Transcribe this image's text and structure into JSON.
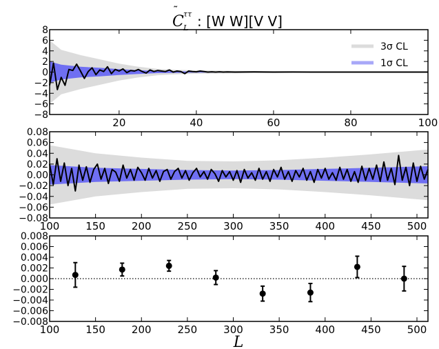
{
  "figure": {
    "title_symbol": "C",
    "title_superscript": "ττ",
    "title_subscript": "L",
    "title_text": ": [W W][V V]",
    "xlabel": "L"
  },
  "colors": {
    "band3": "#dcdcdc",
    "band1": "#6f6ff2",
    "band1_legend": "#a8a8f8",
    "line": "#000000",
    "axis": "#000000"
  },
  "chart_data": [
    {
      "type": "line",
      "panel": "top",
      "xlim": [
        2,
        100
      ],
      "ylim": [
        -8,
        8
      ],
      "xticks": [
        20,
        40,
        60,
        80,
        100
      ],
      "yticks": [
        -8,
        -6,
        -4,
        -2,
        0,
        2,
        4,
        6,
        8
      ],
      "grid": false,
      "legend": {
        "placement": "top-right",
        "entries": [
          {
            "label": "3σ CL",
            "color": "#dcdcdc"
          },
          {
            "label": "1σ CL",
            "color": "#a8a8f8"
          }
        ]
      },
      "band_3sigma": {
        "x": [
          2,
          5,
          10,
          15,
          20,
          25,
          30,
          35,
          40,
          50,
          60,
          70,
          80,
          90,
          100
        ],
        "upper": [
          6.0,
          4.2,
          3.2,
          2.4,
          1.6,
          1.0,
          0.6,
          0.42,
          0.32,
          0.22,
          0.16,
          0.12,
          0.1,
          0.08,
          0.07
        ],
        "lower": [
          -6.0,
          -4.2,
          -3.2,
          -2.4,
          -1.6,
          -1.0,
          -0.6,
          -0.42,
          -0.32,
          -0.22,
          -0.16,
          -0.12,
          -0.1,
          -0.08,
          -0.07
        ]
      },
      "band_1sigma": {
        "x": [
          2,
          5,
          10,
          15,
          20,
          25,
          30,
          35,
          40,
          50,
          60,
          70,
          80,
          90,
          100
        ],
        "upper": [
          2.0,
          1.4,
          1.0,
          0.8,
          0.55,
          0.35,
          0.2,
          0.14,
          0.11,
          0.07,
          0.05,
          0.04,
          0.03,
          0.03,
          0.02
        ],
        "lower": [
          -2.0,
          -1.4,
          -1.0,
          -0.8,
          -0.55,
          -0.35,
          -0.2,
          -0.14,
          -0.11,
          -0.07,
          -0.05,
          -0.04,
          -0.03,
          -0.03,
          -0.02
        ]
      },
      "series": [
        {
          "x": [
            2,
            3,
            4,
            5,
            6,
            7,
            8,
            9,
            10,
            11,
            12,
            13,
            14,
            15,
            16,
            17,
            18,
            19,
            20,
            21,
            22,
            23,
            24,
            25,
            26,
            27,
            28,
            29,
            30,
            31,
            32,
            33,
            34,
            35,
            36,
            37,
            38,
            39,
            40,
            41,
            42,
            43,
            44,
            45,
            46,
            47,
            48,
            50,
            55,
            60,
            65,
            70,
            75,
            80,
            85,
            90,
            95,
            100
          ],
          "y": [
            -2.5,
            1.7,
            -3.3,
            -1.0,
            -2.5,
            0.5,
            0.3,
            1.5,
            0.2,
            -1.2,
            0.1,
            0.8,
            -0.5,
            0.4,
            0.1,
            1.0,
            -0.3,
            0.5,
            0.2,
            0.6,
            -0.1,
            0.3,
            0.2,
            0.5,
            0.1,
            -0.2,
            0.4,
            0.1,
            0.3,
            0.2,
            0.1,
            0.4,
            0.0,
            0.2,
            0.1,
            -0.3,
            0.2,
            0.1,
            0.05,
            0.2,
            0.1,
            0.0,
            0.05,
            0.0,
            0.05,
            0.0,
            0.03,
            0.0,
            0.02,
            0.0,
            0.01,
            0.0,
            0.0,
            0.0,
            0.0,
            0.0,
            0.0,
            0.0
          ]
        }
      ]
    },
    {
      "type": "line",
      "panel": "middle",
      "xlim": [
        100,
        512
      ],
      "ylim": [
        -0.08,
        0.08
      ],
      "xticks": [
        100,
        150,
        200,
        250,
        300,
        350,
        400,
        450,
        500
      ],
      "xticklabels": [
        "100",
        "150",
        "200",
        "250",
        "300",
        "350",
        "400",
        "450",
        "500"
      ],
      "yticks": [
        -0.08,
        -0.06,
        -0.04,
        -0.02,
        0.0,
        0.02,
        0.04,
        0.06,
        0.08
      ],
      "yticklabels": [
        "−0.08",
        "−0.06",
        "−0.04",
        "−0.02",
        "0.00",
        "0.02",
        "0.04",
        "0.06",
        "0.08"
      ],
      "grid": false,
      "band_3sigma": {
        "x": [
          100,
          150,
          200,
          250,
          300,
          350,
          400,
          450,
          512
        ],
        "upper": [
          0.055,
          0.04,
          0.032,
          0.026,
          0.025,
          0.027,
          0.032,
          0.038,
          0.047
        ],
        "lower": [
          -0.055,
          -0.04,
          -0.032,
          -0.026,
          -0.025,
          -0.027,
          -0.032,
          -0.038,
          -0.047
        ]
      },
      "band_1sigma": {
        "x": [
          100,
          150,
          200,
          250,
          300,
          350,
          400,
          450,
          512
        ],
        "upper": [
          0.018,
          0.013,
          0.011,
          0.009,
          0.008,
          0.009,
          0.011,
          0.013,
          0.016
        ],
        "lower": [
          -0.018,
          -0.013,
          -0.011,
          -0.009,
          -0.008,
          -0.009,
          -0.011,
          -0.013,
          -0.016
        ]
      },
      "series": [
        {
          "x": [
            100,
            104,
            108,
            112,
            116,
            120,
            124,
            128,
            132,
            136,
            140,
            144,
            148,
            152,
            156,
            160,
            164,
            168,
            172,
            176,
            180,
            184,
            188,
            192,
            196,
            200,
            204,
            208,
            212,
            216,
            220,
            224,
            228,
            232,
            236,
            240,
            244,
            248,
            252,
            256,
            260,
            264,
            268,
            272,
            276,
            280,
            284,
            288,
            292,
            296,
            300,
            304,
            308,
            312,
            316,
            320,
            324,
            328,
            332,
            336,
            340,
            344,
            348,
            352,
            356,
            360,
            364,
            368,
            372,
            376,
            380,
            384,
            388,
            392,
            396,
            400,
            404,
            408,
            412,
            416,
            420,
            424,
            428,
            432,
            436,
            440,
            444,
            448,
            452,
            456,
            460,
            464,
            468,
            472,
            476,
            480,
            484,
            488,
            492,
            496,
            500,
            504,
            508,
            512
          ],
          "y": [
            0.02,
            -0.018,
            0.03,
            -0.012,
            0.022,
            -0.02,
            0.012,
            -0.03,
            0.018,
            -0.01,
            0.015,
            -0.014,
            0.01,
            0.02,
            -0.008,
            0.012,
            -0.016,
            0.01,
            0.005,
            -0.012,
            0.018,
            -0.006,
            0.01,
            -0.01,
            0.014,
            0.004,
            -0.01,
            0.012,
            -0.006,
            0.008,
            -0.012,
            0.006,
            0.01,
            -0.008,
            0.006,
            0.012,
            -0.006,
            0.008,
            -0.01,
            0.004,
            0.012,
            -0.004,
            0.006,
            -0.008,
            0.01,
            0.002,
            -0.012,
            0.008,
            -0.004,
            0.006,
            -0.01,
            0.008,
            -0.014,
            0.01,
            -0.006,
            0.004,
            -0.01,
            0.012,
            -0.008,
            0.006,
            -0.012,
            0.01,
            -0.004,
            0.014,
            -0.008,
            0.006,
            -0.012,
            0.008,
            -0.004,
            0.012,
            -0.01,
            0.006,
            -0.014,
            0.01,
            -0.006,
            0.012,
            -0.008,
            0.004,
            -0.01,
            0.014,
            -0.008,
            0.01,
            -0.012,
            0.006,
            -0.014,
            0.016,
            -0.01,
            0.012,
            -0.008,
            0.018,
            -0.012,
            0.024,
            -0.01,
            0.012,
            -0.018,
            0.036,
            -0.01,
            0.014,
            -0.02,
            0.022,
            -0.012,
            0.016,
            -0.008,
            0.01
          ]
        }
      ]
    },
    {
      "type": "scatter",
      "panel": "bottom",
      "xlim": [
        100,
        512
      ],
      "ylim": [
        -0.008,
        0.008
      ],
      "xticks": [
        100,
        150,
        200,
        250,
        300,
        350,
        400,
        450,
        500
      ],
      "xticklabels": [
        "100",
        "150",
        "200",
        "250",
        "300",
        "350",
        "400",
        "450",
        "500"
      ],
      "yticks": [
        -0.008,
        -0.006,
        -0.004,
        -0.002,
        0.0,
        0.002,
        0.004,
        0.006,
        0.008
      ],
      "yticklabels": [
        "−0.008",
        "−0.006",
        "−0.004",
        "−0.002",
        "0.000",
        "0.002",
        "0.004",
        "0.006",
        "0.008"
      ],
      "grid": false,
      "reference_line": 0.0,
      "points": [
        {
          "x": 128,
          "y": 0.0007,
          "err": 0.0023
        },
        {
          "x": 179,
          "y": 0.0017,
          "err": 0.0012
        },
        {
          "x": 230,
          "y": 0.0024,
          "err": 0.001
        },
        {
          "x": 281,
          "y": 0.0002,
          "err": 0.0013
        },
        {
          "x": 332,
          "y": -0.0028,
          "err": 0.0014
        },
        {
          "x": 384,
          "y": -0.0026,
          "err": 0.0017
        },
        {
          "x": 435,
          "y": 0.0022,
          "err": 0.002
        },
        {
          "x": 486,
          "y": 0.0,
          "err": 0.0023
        }
      ]
    }
  ]
}
